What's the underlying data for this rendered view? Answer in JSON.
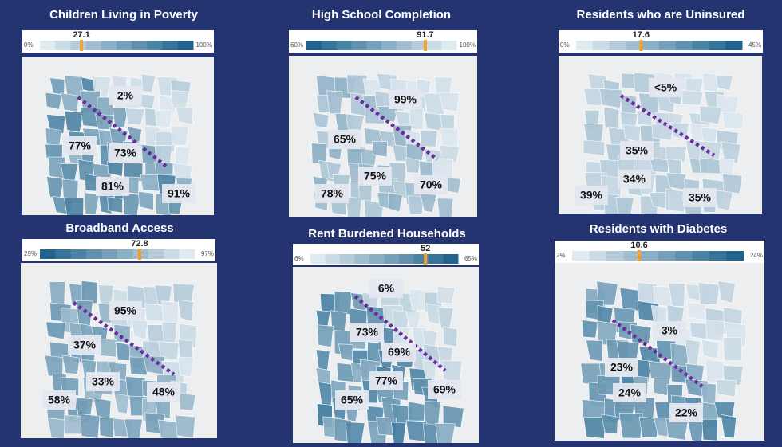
{
  "panels": [
    {
      "title": "Children Living in Poverty",
      "scale": {
        "min": {
          "value": 0,
          "label": "0%"
        },
        "max": {
          "value": 100,
          "label": "100%"
        },
        "marker": 27.1
      },
      "labels": [
        "2%",
        "77%",
        "73%",
        "81%",
        "91%"
      ]
    },
    {
      "title": "High School Completion",
      "scale": {
        "min": {
          "value": 60,
          "label": "60%"
        },
        "max": {
          "value": 100,
          "label": "100%"
        },
        "marker": 91.7
      },
      "labels": [
        "99%",
        "65%",
        "75%",
        "78%",
        "70%"
      ]
    },
    {
      "title": "Residents who are Uninsured",
      "scale": {
        "min": {
          "value": 0,
          "label": "0%"
        },
        "max": {
          "value": 45,
          "label": "45%"
        },
        "marker": 17.6
      },
      "labels": [
        "<5%",
        "35%",
        "34%",
        "39%",
        "35%"
      ]
    },
    {
      "title": "Broadband Access",
      "scale": {
        "min": {
          "value": 29,
          "label": "29%"
        },
        "max": {
          "value": 97,
          "label": "97%"
        },
        "marker": 72.8
      },
      "labels": [
        "95%",
        "37%",
        "33%",
        "58%",
        "48%"
      ]
    },
    {
      "title": "Rent Burdened Households",
      "scale": {
        "min": {
          "value": 6,
          "label": "6%"
        },
        "max": {
          "value": 65,
          "label": "65%"
        },
        "marker": 52
      },
      "labels": [
        "6%",
        "73%",
        "69%",
        "77%",
        "65%",
        "69%"
      ]
    },
    {
      "title": "Residents with Diabetes",
      "scale": {
        "min": {
          "value": 2,
          "label": "2%"
        },
        "max": {
          "value": 24,
          "label": "24%"
        },
        "marker": 10.6
      },
      "labels": [
        "3%",
        "23%",
        "24%",
        "22%"
      ]
    }
  ]
}
